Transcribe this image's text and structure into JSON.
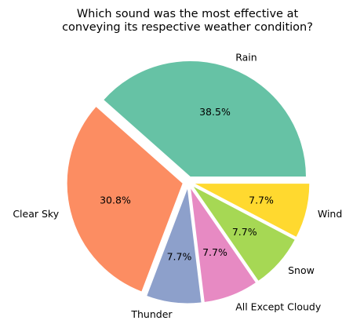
{
  "chart_data": {
    "type": "pie",
    "title_lines": [
      "Which sound was the most effective at",
      "conveying its respective weather condition?"
    ],
    "categories": [
      "Rain",
      "Clear Sky",
      "Thunder",
      "All Except Cloudy",
      "Snow",
      "Wind"
    ],
    "values": [
      38.5,
      30.8,
      7.7,
      7.7,
      7.7,
      7.7
    ],
    "percent_labels": [
      "38.5%",
      "30.8%",
      "7.7%",
      "7.7%",
      "7.7%",
      "7.7%"
    ],
    "colors": [
      "#66c2a5",
      "#fc8d62",
      "#8da0cb",
      "#e78ac3",
      "#a6d854",
      "#ffd92f"
    ],
    "start_angle_deg": 0,
    "direction": "counterclockwise",
    "exploded": true
  }
}
